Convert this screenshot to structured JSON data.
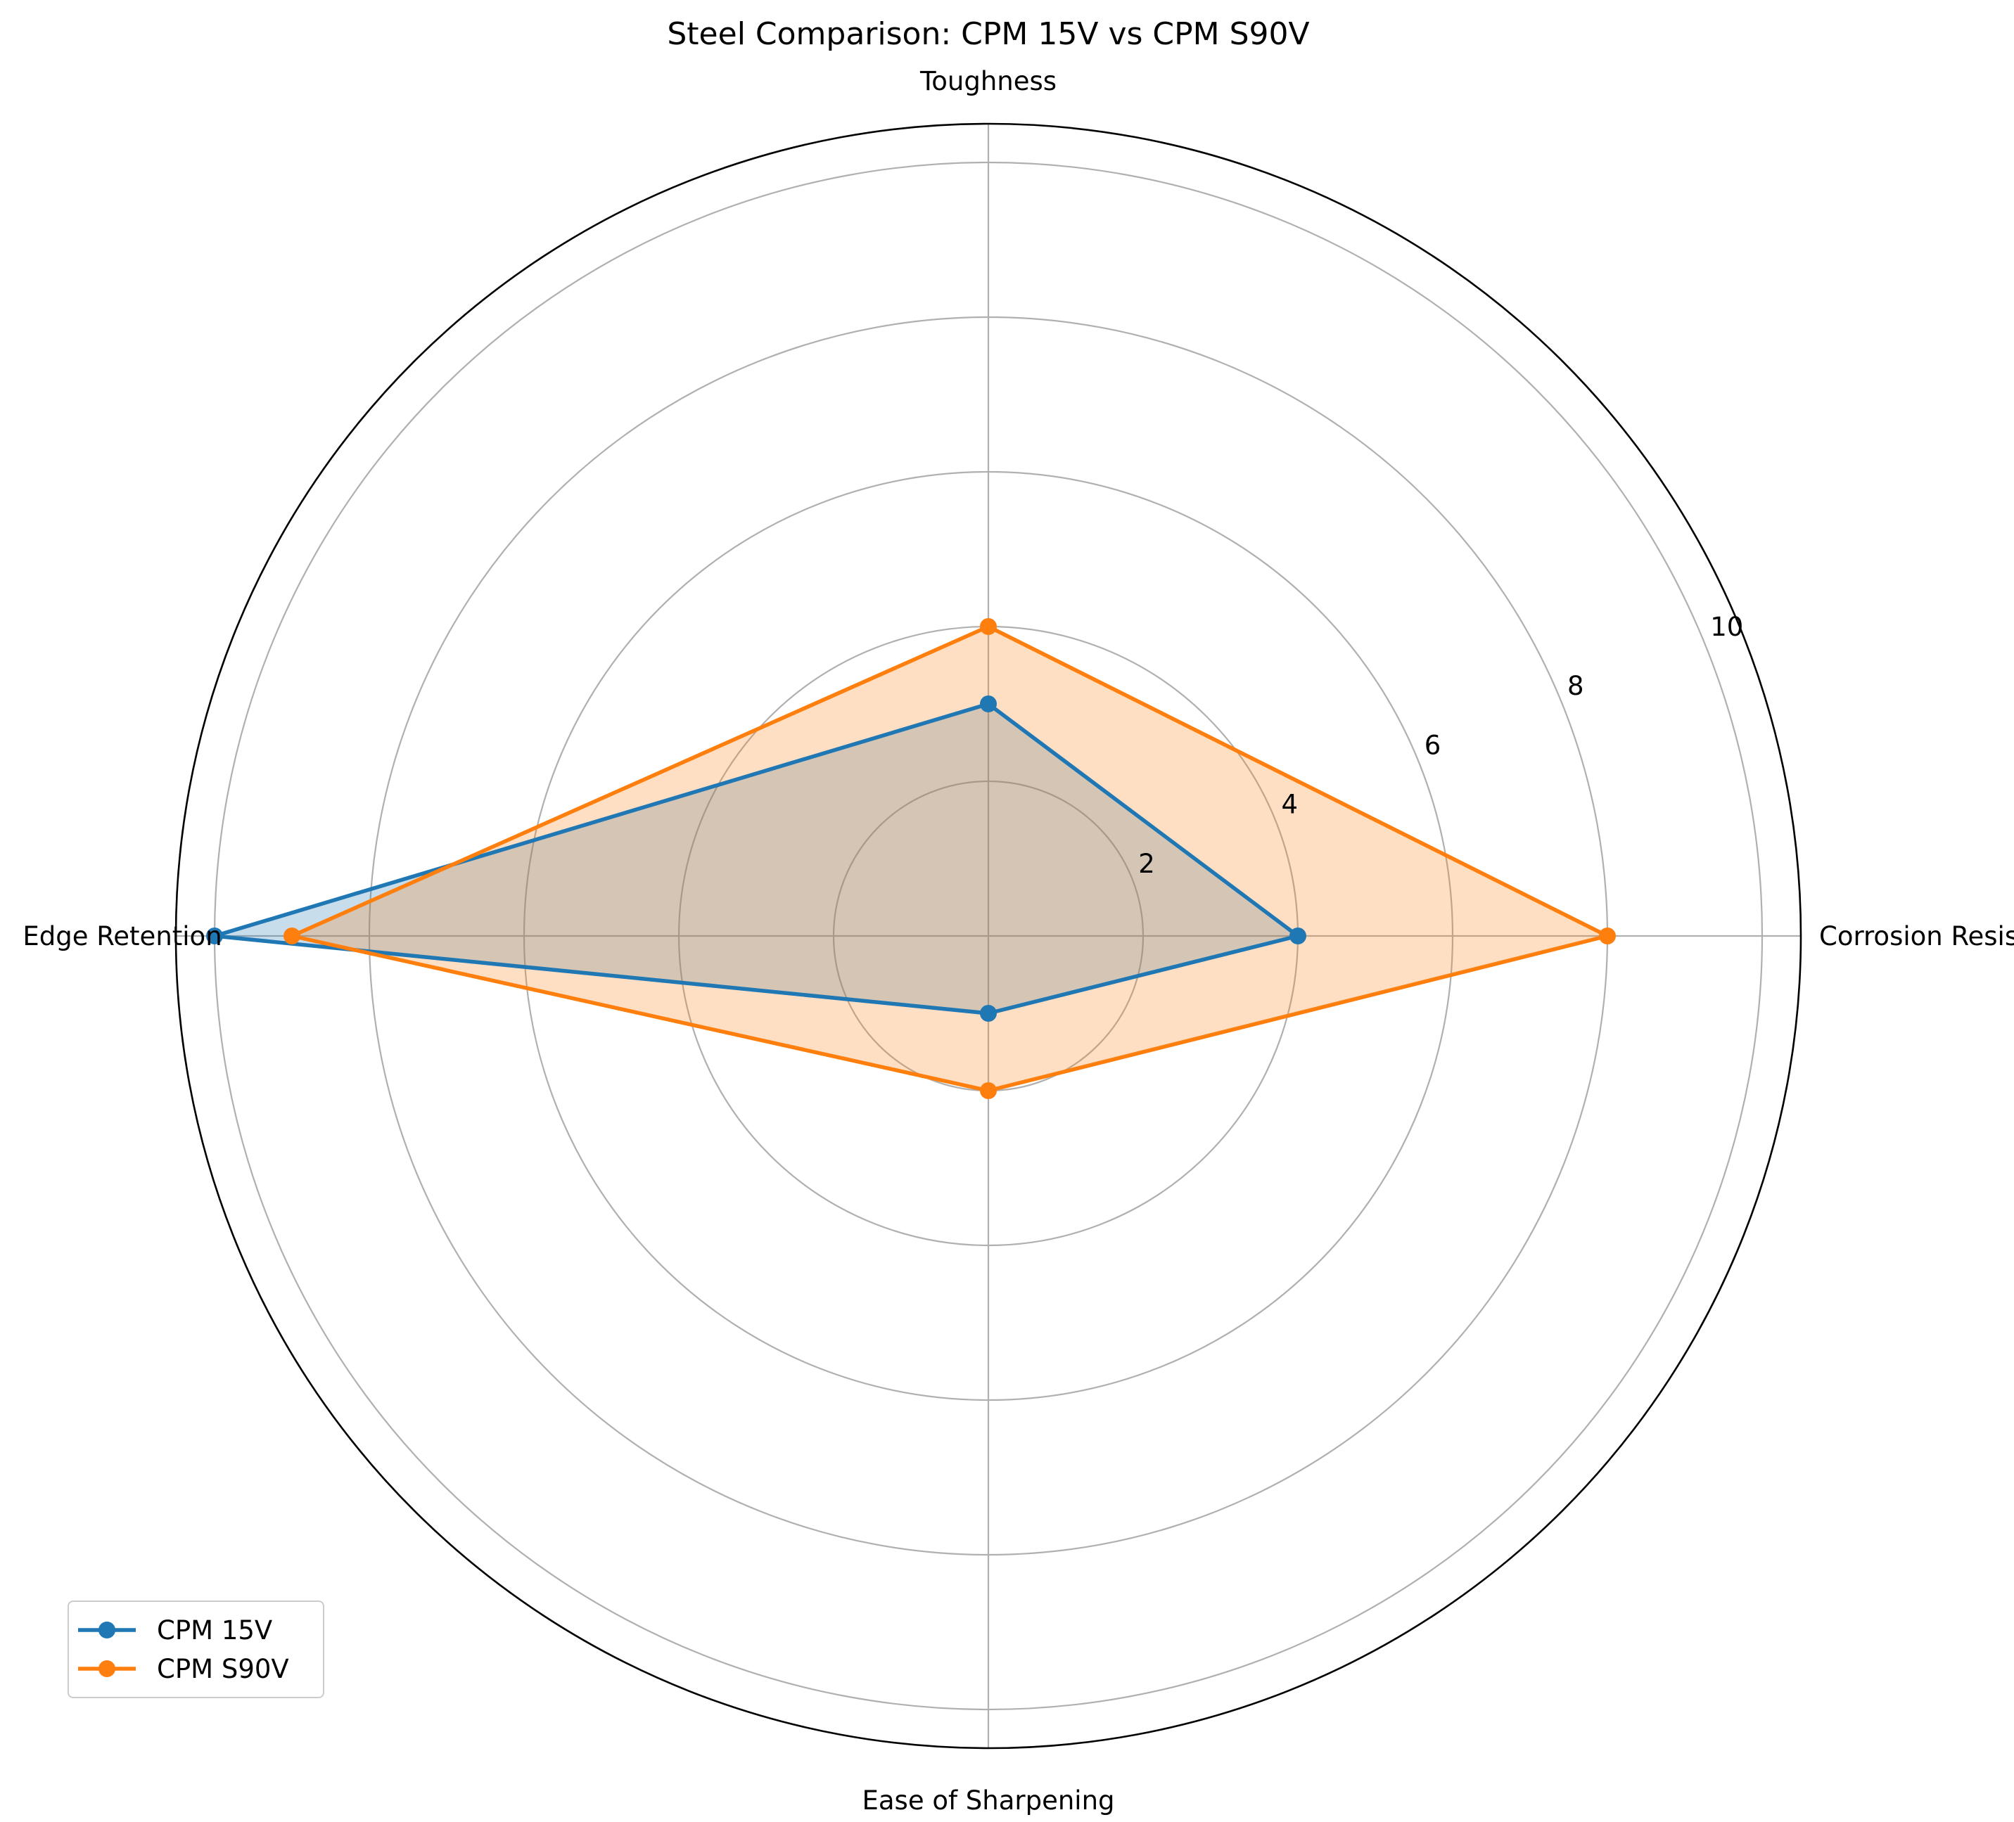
{
  "chart_data": {
    "type": "radar",
    "title": "Steel Comparison: CPM 15V vs CPM S90V",
    "categories": [
      "Corrosion Resistance",
      "Toughness",
      "Edge Retention",
      "Ease of Sharpening"
    ],
    "rlim": [
      0,
      10.5
    ],
    "rticks": [
      2,
      4,
      6,
      8,
      10
    ],
    "rtick_labels": [
      "2",
      "4",
      "6",
      "8",
      "10"
    ],
    "grid": true,
    "legend_position": "lower-left",
    "series": [
      {
        "name": "CPM 15V",
        "values": [
          4,
          3,
          10,
          1
        ],
        "color": "#1f77b4"
      },
      {
        "name": "CPM S90V",
        "values": [
          8,
          4,
          9,
          2
        ],
        "color": "#ff7f0e"
      }
    ]
  }
}
